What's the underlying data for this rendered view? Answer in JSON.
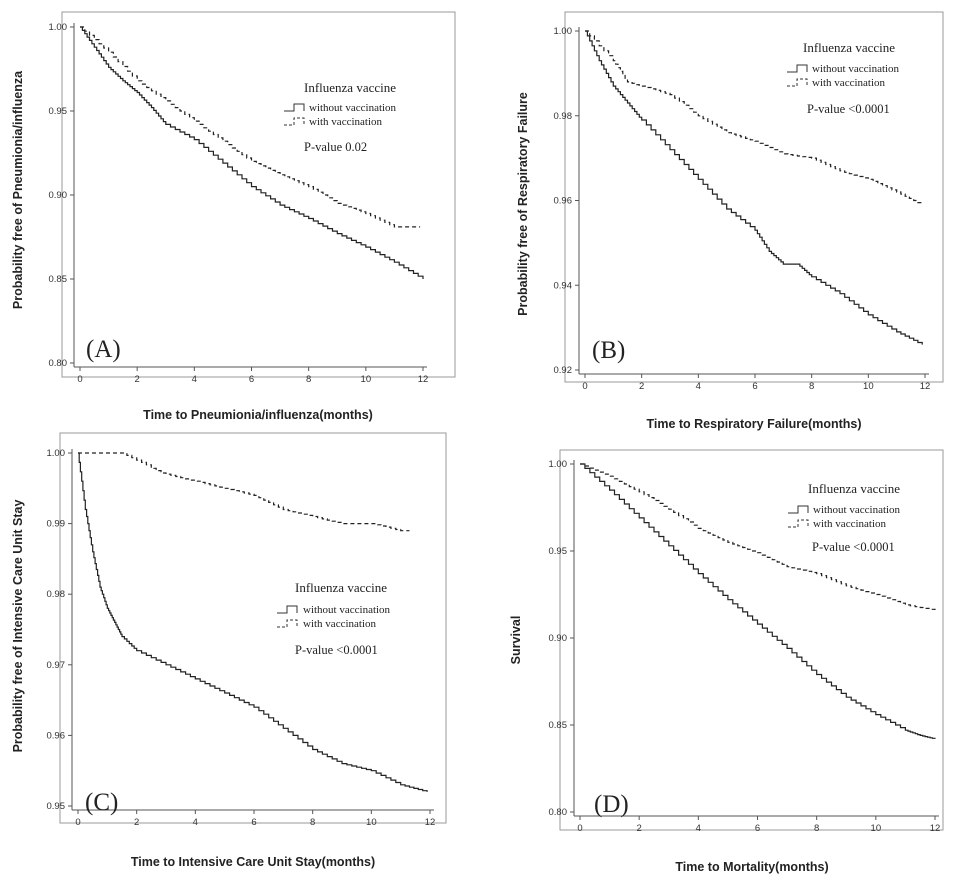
{
  "figure": {
    "panels": [
      {
        "letter": "(A)",
        "legend": {
          "title": "Influenza vaccine",
          "items": [
            "without vaccination",
            "with vaccination"
          ]
        },
        "pvalue": "P-value 0.02"
      },
      {
        "letter": "(B)",
        "legend": {
          "title": "Influenza vaccine",
          "items": [
            "without vaccination",
            "with vaccination"
          ]
        },
        "pvalue": "P-value <0.0001"
      },
      {
        "letter": "(C)",
        "legend": {
          "title": "Influenza vaccine",
          "items": [
            "without vaccination",
            "with vaccination"
          ]
        },
        "pvalue": "P-value <0.0001"
      },
      {
        "letter": "(D)",
        "legend": {
          "title": "Influenza vaccine",
          "items": [
            "without vaccination",
            "with vaccination"
          ]
        },
        "pvalue": "P-value <0.0001"
      }
    ]
  },
  "chart_data": [
    {
      "type": "line",
      "title": "",
      "xlabel": "Time to Pneumionia/influenza(months)",
      "ylabel": "Probability free of Pneumionia/influenza",
      "xlim": [
        0,
        12
      ],
      "ylim": [
        0.8,
        1.0
      ],
      "xticks": [
        "0",
        "2",
        "4",
        "6",
        "8",
        "10",
        "12"
      ],
      "yticks": [
        "0.80",
        "0.85",
        "0.90",
        "0.95",
        "1.00"
      ],
      "series": [
        {
          "name": "without vaccination",
          "style": "solid",
          "x": [
            0,
            0.5,
            1,
            1.5,
            2,
            2.5,
            3,
            4,
            5,
            6,
            7,
            8,
            9,
            10,
            11,
            12
          ],
          "y": [
            1.0,
            0.988,
            0.976,
            0.968,
            0.961,
            0.952,
            0.942,
            0.933,
            0.919,
            0.905,
            0.894,
            0.886,
            0.877,
            0.869,
            0.86,
            0.85
          ]
        },
        {
          "name": "with vaccination",
          "style": "dashed",
          "x": [
            0,
            1,
            2,
            3,
            4,
            5,
            6,
            7,
            8,
            9,
            10,
            11,
            11.9
          ],
          "y": [
            1.0,
            0.985,
            0.968,
            0.956,
            0.944,
            0.932,
            0.92,
            0.912,
            0.905,
            0.895,
            0.889,
            0.881,
            0.881
          ]
        }
      ]
    },
    {
      "type": "line",
      "title": "",
      "xlabel": "Time to Respiratory Failure(months)",
      "ylabel": "Probability free of Respiratory Failure",
      "xlim": [
        0,
        12
      ],
      "ylim": [
        0.92,
        1.0
      ],
      "xticks": [
        "0",
        "2",
        "4",
        "6",
        "8",
        "10",
        "12"
      ],
      "yticks": [
        "0.92",
        "0.94",
        "0.96",
        "0.98",
        "1.00"
      ],
      "series": [
        {
          "name": "without vaccination",
          "style": "solid",
          "x": [
            0,
            0.5,
            1,
            1.5,
            2,
            3,
            4,
            5,
            6,
            6.5,
            7,
            7.5,
            8,
            9,
            10,
            11,
            11.9
          ],
          "y": [
            1.0,
            0.993,
            0.987,
            0.983,
            0.979,
            0.972,
            0.965,
            0.958,
            0.953,
            0.948,
            0.945,
            0.945,
            0.942,
            0.938,
            0.933,
            0.929,
            0.926
          ]
        },
        {
          "name": "with vaccination",
          "style": "dashed",
          "x": [
            0,
            1,
            1.5,
            2,
            3,
            4,
            5,
            6,
            7,
            8,
            9,
            10,
            11,
            11.9
          ],
          "y": [
            1.0,
            0.993,
            0.988,
            0.987,
            0.985,
            0.98,
            0.976,
            0.974,
            0.971,
            0.97,
            0.967,
            0.965,
            0.962,
            0.959
          ]
        }
      ]
    },
    {
      "type": "line",
      "title": "",
      "xlabel": "Time to Intensive Care Unit Stay(months)",
      "ylabel": "Probability free of Intensive Care Unit Stay",
      "xlim": [
        0,
        12
      ],
      "ylim": [
        0.95,
        1.0
      ],
      "xticks": [
        "0",
        "2",
        "4",
        "6",
        "8",
        "10",
        "12"
      ],
      "yticks": [
        "0.95",
        "0.96",
        "0.97",
        "0.98",
        "0.99",
        "1.00"
      ],
      "series": [
        {
          "name": "without vaccination",
          "style": "solid",
          "x": [
            0,
            0.25,
            0.5,
            0.75,
            1,
            1.25,
            1.5,
            2,
            3,
            4,
            5,
            6,
            7,
            8,
            9,
            10,
            11,
            11.9
          ],
          "y": [
            1.0,
            0.992,
            0.986,
            0.981,
            0.978,
            0.976,
            0.974,
            0.972,
            0.97,
            0.968,
            0.966,
            0.964,
            0.961,
            0.958,
            0.956,
            0.955,
            0.953,
            0.952
          ]
        },
        {
          "name": "with vaccination",
          "style": "dashed",
          "x": [
            0,
            1.5,
            2.5,
            3,
            4,
            5,
            6,
            7,
            8,
            9,
            10,
            11,
            11.3
          ],
          "y": [
            1.0,
            1.0,
            0.998,
            0.997,
            0.996,
            0.995,
            0.994,
            0.992,
            0.991,
            0.99,
            0.99,
            0.989,
            0.989
          ]
        }
      ]
    },
    {
      "type": "line",
      "title": "",
      "xlabel": "Time to Mortality(months)",
      "ylabel": "Survival",
      "xlim": [
        0,
        12
      ],
      "ylim": [
        0.8,
        1.0
      ],
      "xticks": [
        "0",
        "2",
        "4",
        "6",
        "8",
        "10",
        "12"
      ],
      "yticks": [
        "0.80",
        "0.85",
        "0.90",
        "0.95",
        "1.00"
      ],
      "series": [
        {
          "name": "without vaccination",
          "style": "solid",
          "x": [
            0,
            1,
            2,
            3,
            4,
            5,
            6,
            7,
            8,
            9,
            10,
            11,
            11.5,
            12
          ],
          "y": [
            1.0,
            0.985,
            0.969,
            0.953,
            0.937,
            0.922,
            0.908,
            0.894,
            0.879,
            0.866,
            0.856,
            0.847,
            0.844,
            0.842
          ]
        },
        {
          "name": "with vaccination",
          "style": "dashed",
          "x": [
            0,
            1,
            2,
            3,
            4,
            5,
            6,
            7,
            8,
            9,
            10,
            11,
            12
          ],
          "y": [
            1.0,
            0.993,
            0.984,
            0.974,
            0.963,
            0.955,
            0.949,
            0.941,
            0.937,
            0.93,
            0.925,
            0.919,
            0.916
          ]
        }
      ]
    }
  ]
}
